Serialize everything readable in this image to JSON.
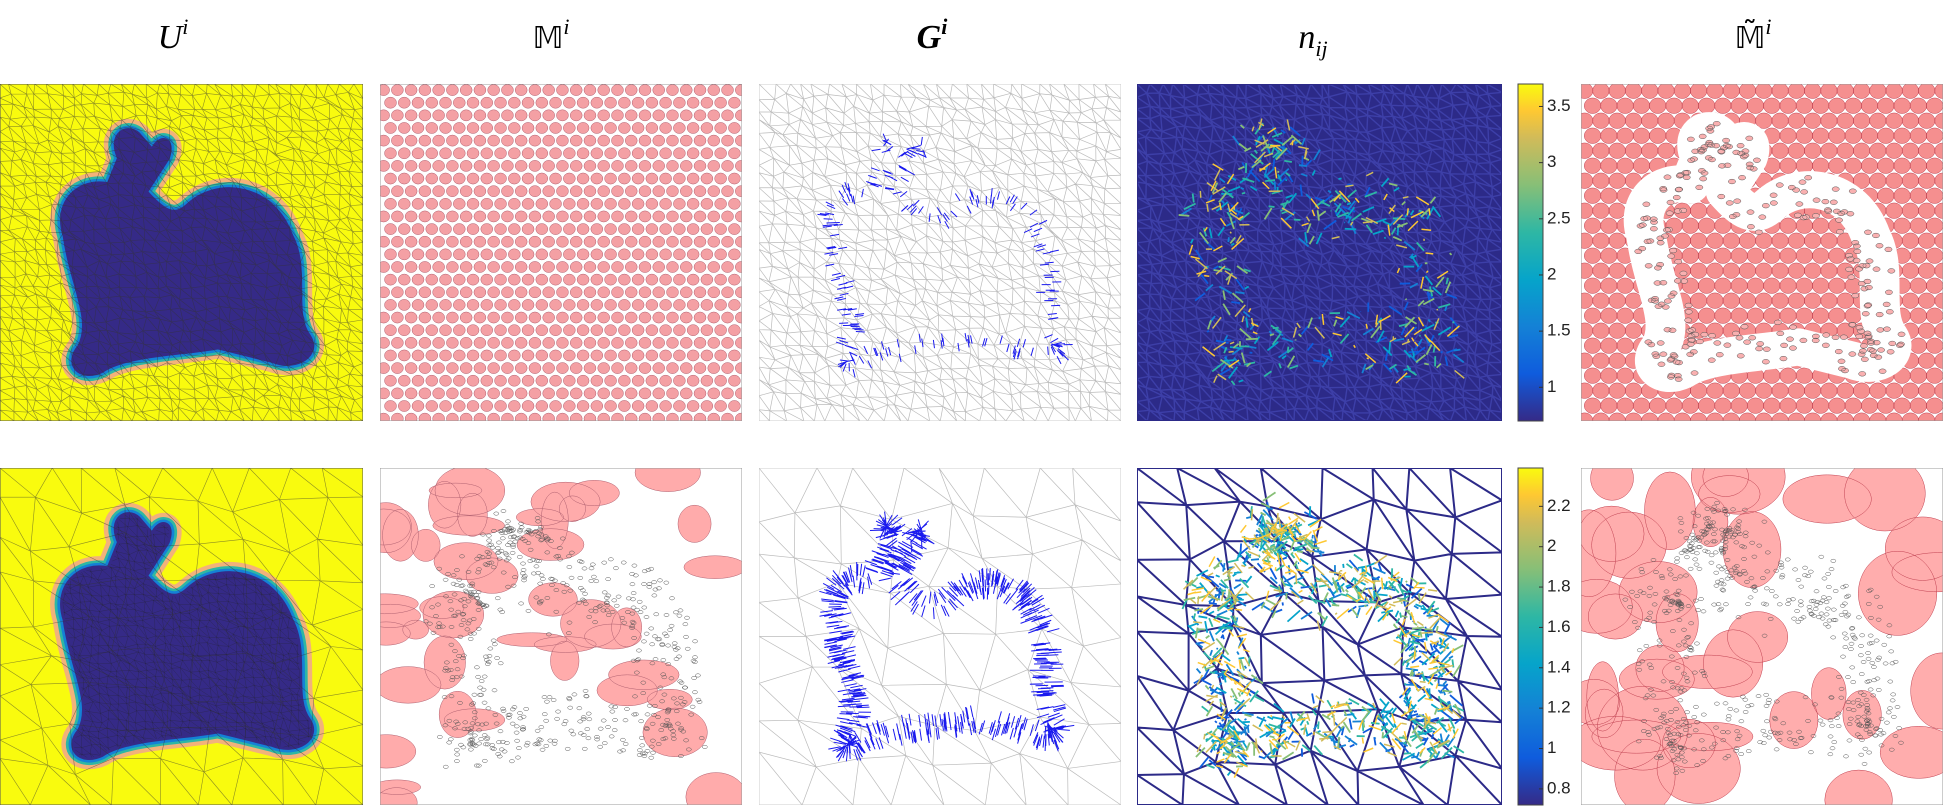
{
  "headers": [
    {
      "main": "U",
      "sup": "i"
    },
    {
      "main": "𝕄",
      "sup": "i"
    },
    {
      "main": "G",
      "sup": "i"
    },
    {
      "main": "n",
      "sub": "ij"
    },
    {
      "main": "𝕄̃",
      "sup": "i"
    }
  ],
  "colorbars": [
    {
      "ylim": [
        0.7,
        3.7
      ],
      "yticks": [
        1,
        1.5,
        2,
        2.5,
        3,
        3.5
      ]
    },
    {
      "ylim": [
        0.72,
        2.39
      ],
      "yticks": [
        0.8,
        1,
        1.2,
        1.4,
        1.6,
        1.8,
        2,
        2.2
      ]
    }
  ]
}
